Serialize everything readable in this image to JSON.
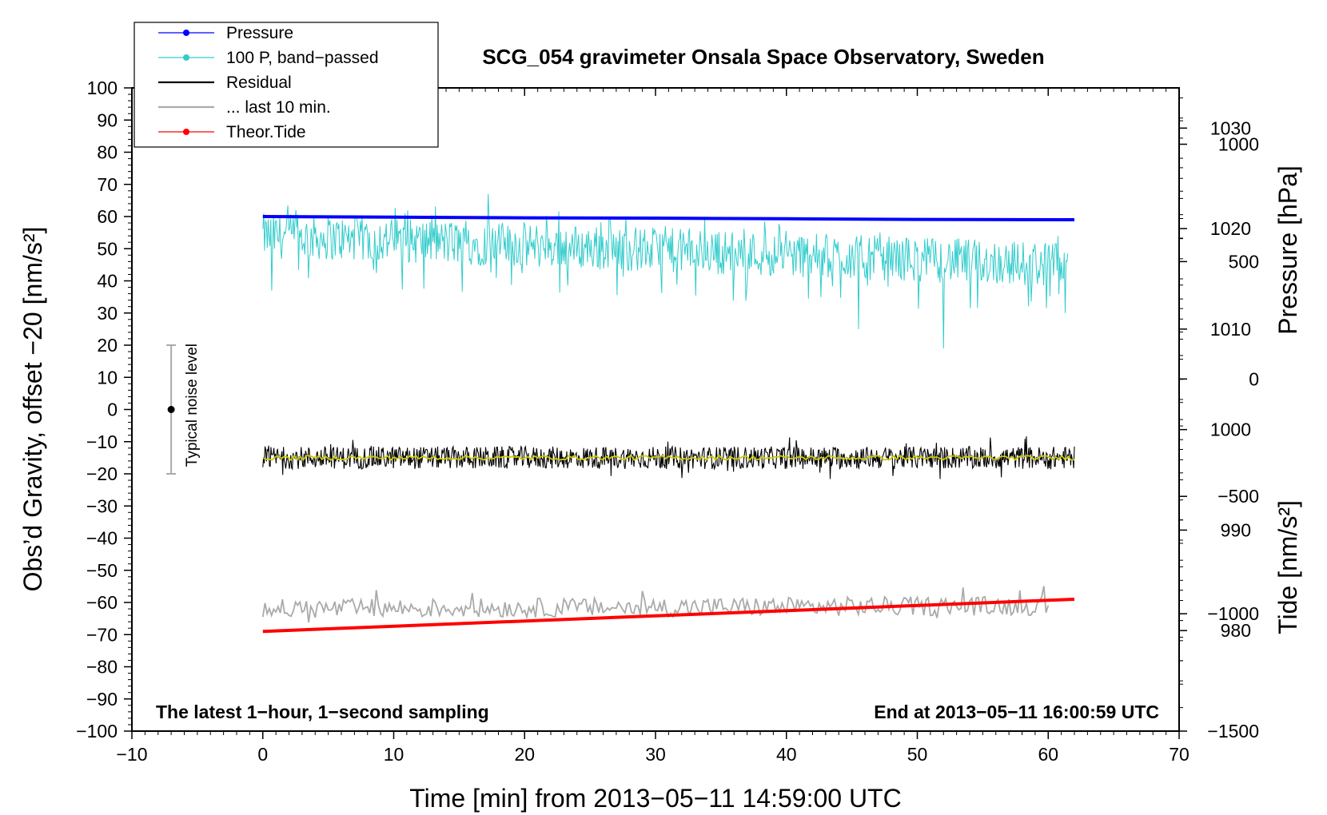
{
  "chart_data": {
    "type": "line",
    "title": "SCG_054 gravimeter Onsala Space Observatory, Sweden",
    "xlabel": "Time [min] from 2013−05−11 14:59:00 UTC",
    "ylabel_left": "Obs’d Gravity, offset −20 [nm/s²]",
    "ylabel_right_pressure": "Pressure [hPa]",
    "ylabel_right_tide": "Tide [nm/s²]",
    "xlim": [
      -10,
      70
    ],
    "ylim_left": [
      -100,
      100
    ],
    "pressure_axis_range": [
      970,
      1034
    ],
    "tide_axis_range": [
      -1500,
      1240
    ],
    "x_ticks": [
      "−10",
      "0",
      "10",
      "20",
      "30",
      "40",
      "50",
      "60",
      "70"
    ],
    "y_left_ticks": [
      "100",
      "90",
      "80",
      "70",
      "60",
      "50",
      "40",
      "30",
      "20",
      "10",
      "0",
      "−10",
      "−20",
      "−30",
      "−40",
      "−50",
      "−60",
      "−70",
      "−80",
      "−90",
      "−100"
    ],
    "pressure_ticks": [
      "1030",
      "1020",
      "1010",
      "1000",
      "990",
      "980"
    ],
    "tide_ticks": [
      "1000",
      "500",
      "0",
      "−500",
      "−1000",
      "−1500"
    ],
    "annotations": {
      "bottom_left": "The latest 1−hour, 1−second sampling",
      "bottom_right": "End at 2013−05−11 16:00:59 UTC",
      "noise": "Typical noise level"
    },
    "noise_bar": {
      "x": -7,
      "y": 0,
      "low": -20,
      "high": 20
    },
    "legend": {
      "position": "top-left",
      "entries": [
        "Pressure",
        "100 P, band−passed",
        "Residual",
        "... last 10 min.",
        "Theor.Tide"
      ]
    },
    "series": [
      {
        "name": "Pressure",
        "color": "#0000ff",
        "axis": "left",
        "x": [
          0,
          10,
          20,
          30,
          40,
          50,
          62
        ],
        "y": [
          60,
          59.8,
          59.6,
          59.5,
          59.3,
          59.1,
          59
        ]
      },
      {
        "name": "100 P, band−passed",
        "color": "#33cccc",
        "axis": "left",
        "mean_start": 54,
        "mean_end": 45,
        "noise_amplitude": 7,
        "x_range": [
          0,
          61.5
        ],
        "extreme_dips": [
          [
            0.7,
            37
          ],
          [
            17.2,
            67
          ],
          [
            45.5,
            25
          ],
          [
            52,
            19
          ],
          [
            61.3,
            30
          ]
        ]
      },
      {
        "name": "Residual",
        "color": "#000000",
        "axis": "left",
        "mean": -15,
        "noise_amplitude": 3.5,
        "x_range": [
          0,
          62
        ]
      },
      {
        "name": "Residual smoothed",
        "color": "#cccc00",
        "axis": "left",
        "mean": -15,
        "x_range": [
          0,
          62
        ]
      },
      {
        "name": "... last 10 min.",
        "color": "#aaaaaa",
        "axis": "left",
        "mean_start": -62,
        "mean_end": -61,
        "noise_amplitude": 3,
        "x_range": [
          0,
          60
        ]
      },
      {
        "name": "Theor.Tide",
        "color": "#ff0000",
        "axis": "left",
        "x": [
          0,
          62
        ],
        "y": [
          -69,
          -59
        ]
      }
    ]
  }
}
